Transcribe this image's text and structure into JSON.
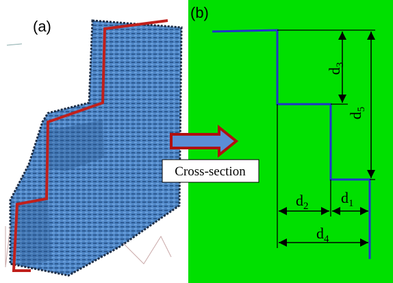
{
  "panels": {
    "a": "(a)",
    "b": "(b)"
  },
  "arrow_label": "Cross-section",
  "dimensions": [
    {
      "letter": "d",
      "index": "3"
    },
    {
      "letter": "d",
      "index": "5"
    },
    {
      "letter": "d",
      "index": "2"
    },
    {
      "letter": "d",
      "index": "1"
    },
    {
      "letter": "d",
      "index": "4"
    }
  ]
}
